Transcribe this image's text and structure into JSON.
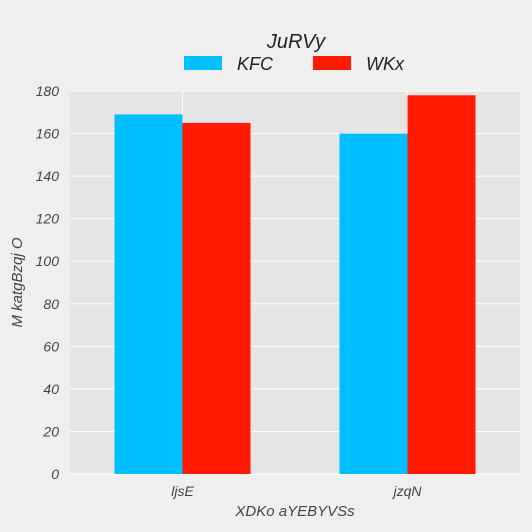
{
  "chart_data": {
    "type": "bar",
    "categories": [
      "ljsE",
      "jzqN"
    ],
    "series": [
      {
        "name": "KFC",
        "values": [
          169,
          160
        ],
        "color": "#00bfff"
      },
      {
        "name": "WKx",
        "values": [
          165,
          178
        ],
        "color": "#ff1a00"
      }
    ],
    "xlabel": "XDKo aYEBYVSs",
    "ylabel": "M katgBzqj O",
    "ylim": [
      0,
      180
    ],
    "yticks": [
      0,
      20,
      40,
      60,
      80,
      100,
      120,
      140,
      160,
      180
    ],
    "legend": {
      "title": "JuRVy",
      "placement": "top-center"
    },
    "grid": true,
    "colors": {
      "panel": "#e5e5e5",
      "background": "#efefef",
      "grid": "#ffffff"
    }
  }
}
